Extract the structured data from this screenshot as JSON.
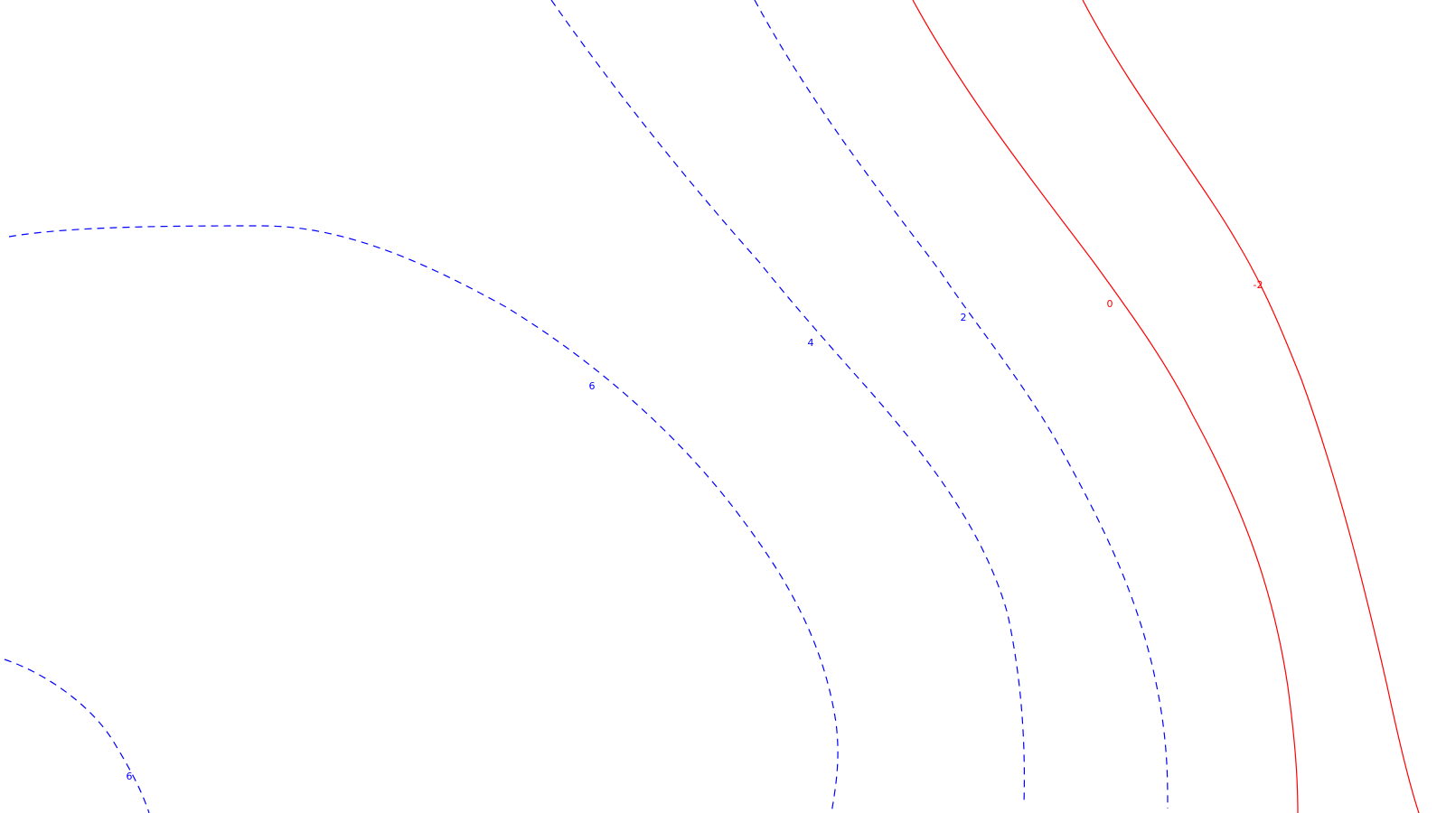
{
  "chart_data": {
    "type": "contour",
    "levels": [
      {
        "level": 6,
        "label": "6",
        "color": "#0000ff",
        "style": "dashed"
      },
      {
        "level": 4,
        "label": "4",
        "color": "#0000ff",
        "style": "dashed"
      },
      {
        "level": 2,
        "label": "2",
        "color": "#0000ff",
        "style": "dashed"
      },
      {
        "level": 0,
        "label": "0",
        "color": "#ff0000",
        "style": "solid"
      },
      {
        "level": -2,
        "label": "-2",
        "color": "#ff0000",
        "style": "solid"
      }
    ],
    "extra_labels": [
      {
        "label": "6",
        "color": "#0000ff"
      }
    ],
    "axes_visible": false,
    "grid": false
  }
}
